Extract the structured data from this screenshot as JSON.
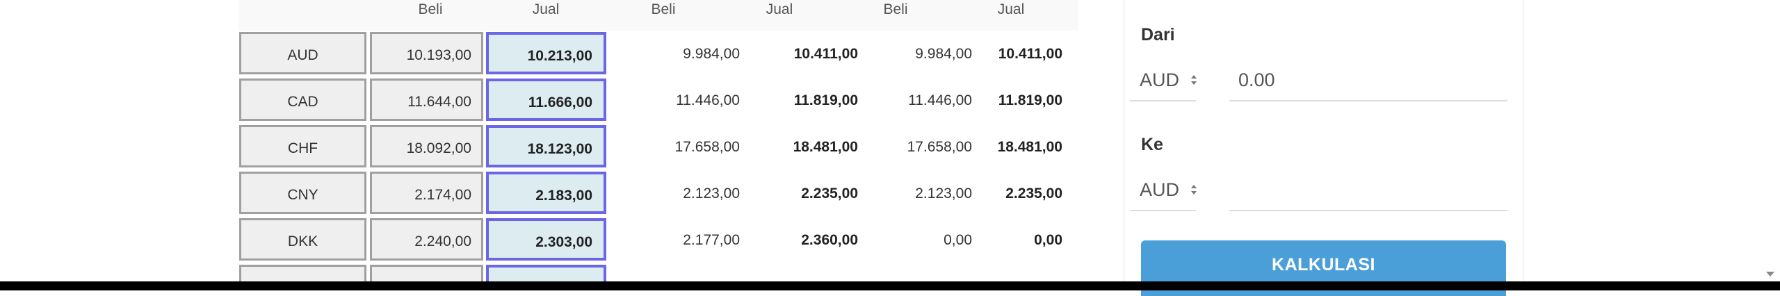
{
  "table": {
    "headers": [
      "Beli",
      "Jual",
      "Beli",
      "Jual",
      "Beli",
      "Jual"
    ],
    "rows": [
      {
        "currency": "AUD",
        "c1_beli": "10.193,00",
        "c1_jual": "10.213,00",
        "c2_beli": "9.984,00",
        "c2_jual": "10.411,00",
        "c3_beli": "9.984,00",
        "c3_jual": "10.411,00"
      },
      {
        "currency": "CAD",
        "c1_beli": "11.644,00",
        "c1_jual": "11.666,00",
        "c2_beli": "11.446,00",
        "c2_jual": "11.819,00",
        "c3_beli": "11.446,00",
        "c3_jual": "11.819,00"
      },
      {
        "currency": "CHF",
        "c1_beli": "18.092,00",
        "c1_jual": "18.123,00",
        "c2_beli": "17.658,00",
        "c2_jual": "18.481,00",
        "c3_beli": "17.658,00",
        "c3_jual": "18.481,00"
      },
      {
        "currency": "CNY",
        "c1_beli": "2.174,00",
        "c1_jual": "2.183,00",
        "c2_beli": "2.123,00",
        "c2_jual": "2.235,00",
        "c3_beli": "2.123,00",
        "c3_jual": "2.235,00"
      },
      {
        "currency": "DKK",
        "c1_beli": "2.240,00",
        "c1_jual": "2.303,00",
        "c2_beli": "2.177,00",
        "c2_jual": "2.360,00",
        "c3_beli": "0,00",
        "c3_jual": "0,00"
      }
    ]
  },
  "calculator": {
    "from_label": "Dari",
    "from_currency": "AUD",
    "amount_placeholder": "0.00",
    "to_label": "Ke",
    "to_currency": "AUD",
    "button_label": "KALKULASI"
  },
  "icons": {
    "select_arrows": "sort-arrows-icon",
    "scroll_down": "triangle-down-icon"
  },
  "colors": {
    "button": "#4b9fd8",
    "jual_highlight_bg": "#dcecf1",
    "jual_highlight_border": "#6b66e6"
  }
}
